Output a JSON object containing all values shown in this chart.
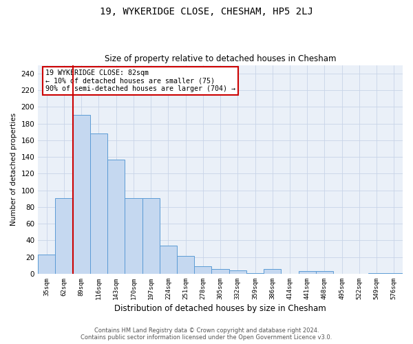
{
  "title": "19, WYKERIDGE CLOSE, CHESHAM, HP5 2LJ",
  "subtitle": "Size of property relative to detached houses in Chesham",
  "xlabel": "Distribution of detached houses by size in Chesham",
  "ylabel": "Number of detached properties",
  "categories": [
    "35sqm",
    "62sqm",
    "89sqm",
    "116sqm",
    "143sqm",
    "170sqm",
    "197sqm",
    "224sqm",
    "251sqm",
    "278sqm",
    "305sqm",
    "332sqm",
    "359sqm",
    "386sqm",
    "414sqm",
    "441sqm",
    "468sqm",
    "495sqm",
    "522sqm",
    "549sqm",
    "576sqm"
  ],
  "values": [
    23,
    91,
    190,
    168,
    137,
    91,
    91,
    34,
    21,
    9,
    6,
    4,
    1,
    6,
    0,
    3,
    3,
    0,
    0,
    1,
    1
  ],
  "bar_color": "#c5d8f0",
  "bar_edge_color": "#5b9bd5",
  "red_line_index": 2,
  "marker_line_color": "#cc0000",
  "ylim": [
    0,
    250
  ],
  "yticks": [
    0,
    20,
    40,
    60,
    80,
    100,
    120,
    140,
    160,
    180,
    200,
    220,
    240
  ],
  "annotation_title": "19 WYKERIDGE CLOSE: 82sqm",
  "annotation_line1": "← 10% of detached houses are smaller (75)",
  "annotation_line2": "90% of semi-detached houses are larger (704) →",
  "annotation_box_color": "#ffffff",
  "annotation_box_edge_color": "#cc0000",
  "footer_line1": "Contains HM Land Registry data © Crown copyright and database right 2024.",
  "footer_line2": "Contains public sector information licensed under the Open Government Licence v3.0.",
  "background_color": "#ffffff",
  "plot_bg_color": "#eaf0f8",
  "grid_color": "#c8d4e8"
}
